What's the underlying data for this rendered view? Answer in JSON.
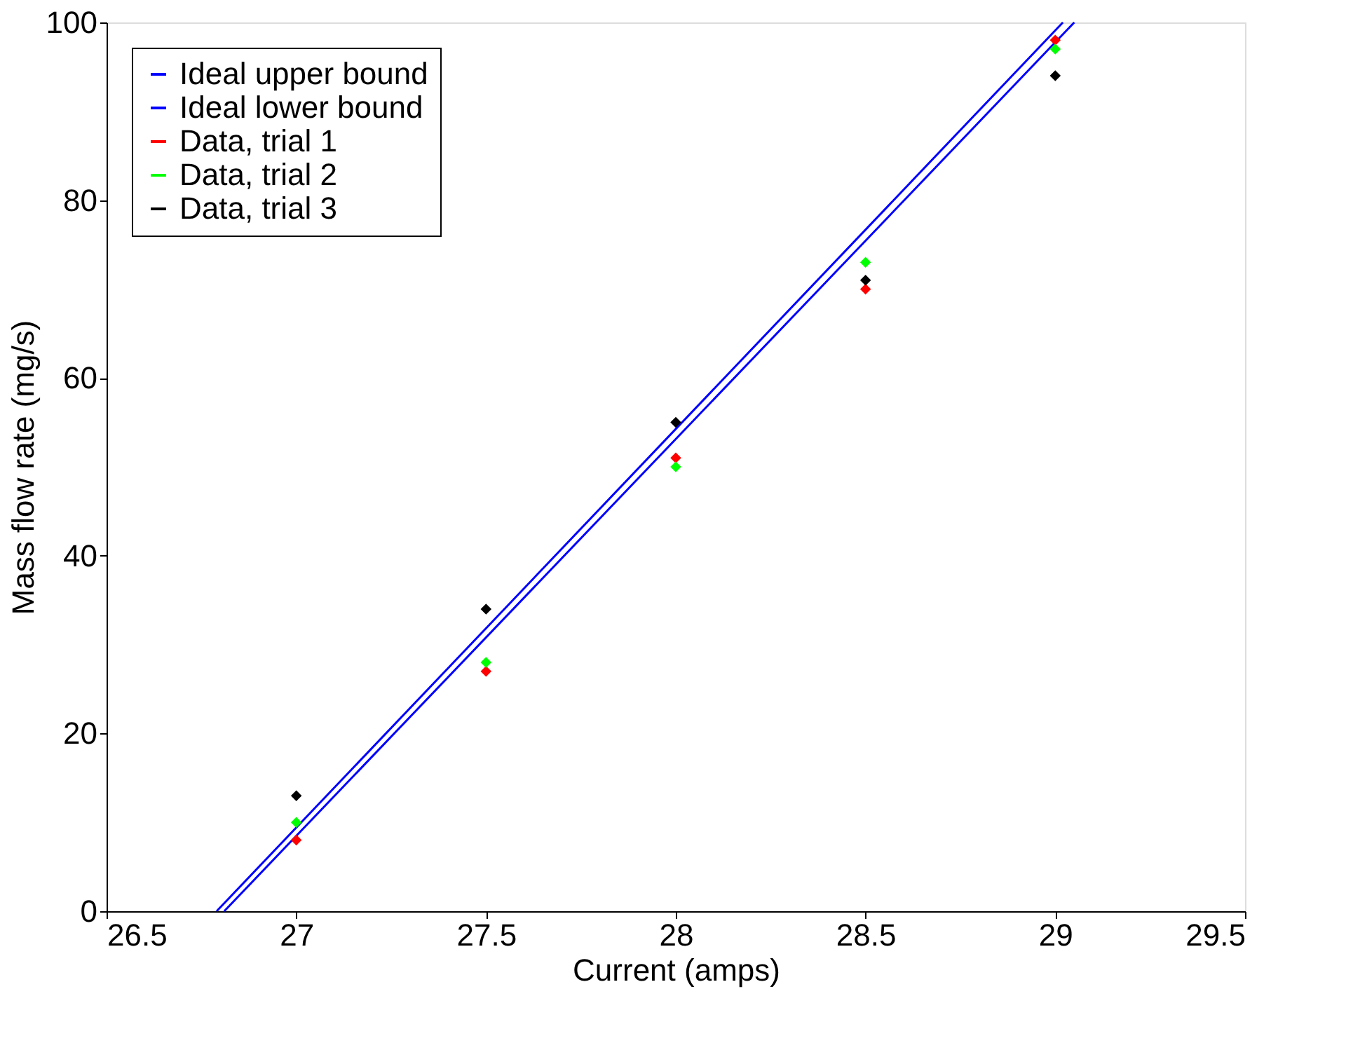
{
  "chart_data": {
    "type": "scatter",
    "xlabel": "Current (amps)",
    "ylabel": "Mass flow rate (mg/s)",
    "x": [
      27,
      27.5,
      28,
      28.5,
      29
    ],
    "series": [
      {
        "name": "Ideal upper bound",
        "type": "line",
        "color": "#0000ff",
        "x": [
          26.79,
          29.02
        ],
        "values": [
          0,
          100
        ],
        "marker": "none"
      },
      {
        "name": "Ideal lower bound",
        "type": "line",
        "color": "#0000ff",
        "x": [
          26.81,
          29.05
        ],
        "values": [
          0,
          100
        ],
        "marker": "none"
      },
      {
        "name": "Data, trial 1",
        "color": "#ff0000",
        "values": [
          8,
          27,
          51,
          70,
          98
        ]
      },
      {
        "name": "Data, trial 2",
        "color": "#00ff00",
        "values": [
          10,
          28,
          50,
          73,
          97
        ]
      },
      {
        "name": "Data, trial 3",
        "color": "#000000",
        "values": [
          13,
          34,
          55,
          71,
          94
        ]
      }
    ],
    "xlim": [
      26.5,
      29.5
    ],
    "xticks": [
      26.5,
      27,
      27.5,
      28,
      28.5,
      29,
      29.5
    ],
    "ylim": [
      0,
      100
    ],
    "yticks": [
      0,
      20,
      40,
      60,
      80,
      100
    ],
    "marker": "diamond",
    "legend": "top left",
    "grid": false
  }
}
